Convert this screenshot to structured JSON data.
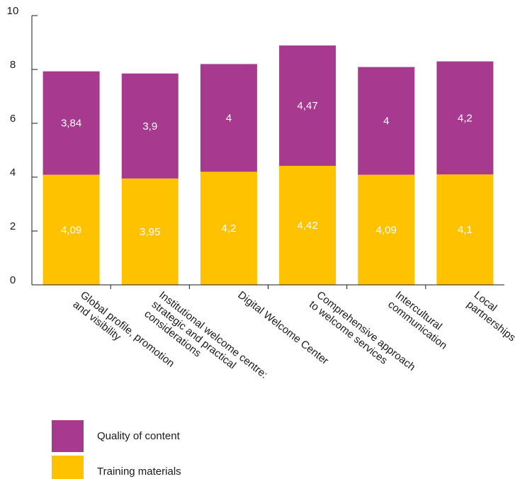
{
  "chart_data": {
    "type": "bar",
    "stacked": true,
    "title": "",
    "xlabel": "",
    "ylabel": "",
    "ylim": [
      0,
      10
    ],
    "yticks": [
      "0",
      "2",
      "4",
      "6",
      "8",
      "10"
    ],
    "grid": false,
    "categories": [
      [
        "Global profile, promotion",
        "and visibility"
      ],
      [
        "Institutional welcome centre:",
        "strategic and practical",
        "considerations"
      ],
      [
        "Digital Welcome Center"
      ],
      [
        "Comprehensive approach",
        "to welcome services"
      ],
      [
        "Intercultural",
        "communication"
      ],
      [
        "Local",
        "partnerships"
      ]
    ],
    "series": [
      {
        "name": "Training materials",
        "color": "#FFC200",
        "values": [
          4.09,
          3.95,
          4.2,
          4.42,
          4.09,
          4.1
        ],
        "labels": [
          "4,09",
          "3,95",
          "4,2",
          "4,42",
          "4,09",
          "4,1"
        ]
      },
      {
        "name": "Quality of content",
        "color": "#A7398F",
        "values": [
          3.84,
          3.9,
          4,
          4.47,
          4,
          4.2
        ],
        "labels": [
          "3,84",
          "3,9",
          "4",
          "4,47",
          "4",
          "4,2"
        ]
      }
    ],
    "legend": {
      "placement": "bottom-left",
      "order": [
        "Quality of content",
        "Training materials"
      ]
    }
  }
}
